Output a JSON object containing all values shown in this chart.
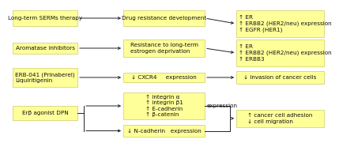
{
  "bg_color": "#ffffff",
  "box_color": "#ffff99",
  "box_edge_color": "#cccc66",
  "text_color": "#111111",
  "arrow_color": "#222222",
  "font_size": 5.2,
  "row1": {
    "left": "Long-term SERMs therapy",
    "mid": "Drug resistance development",
    "right": "↑ ER\n↑ ERBB2 (HER2/neu) expression\n↑ EGFR (HER1)"
  },
  "row2": {
    "left": "Aromatase inhibitors",
    "mid": "Resistance to long-term\nestrogen deprivation",
    "right": "↑ ER\n↑ ERBB2 (HER2/neu) expression\n↑ ERBB3"
  },
  "row3": {
    "left": "ERB-041 (Prinaberel)\nLiquiritigenin",
    "mid": "↓ CXCR4     expression",
    "right": "↓ invasion of cancer cells"
  },
  "row4": {
    "left": "Erβ agonist DPN",
    "mid_top": "↑ integrin α\n↑ integrin β1\n↑ E-cadherin\n↑ β-catenin",
    "mid_top_suffix": "expression",
    "mid_bot": "↓ N-cadherin   expression",
    "right": "↑ cancer cell adhesion\n↓ cell migration"
  }
}
